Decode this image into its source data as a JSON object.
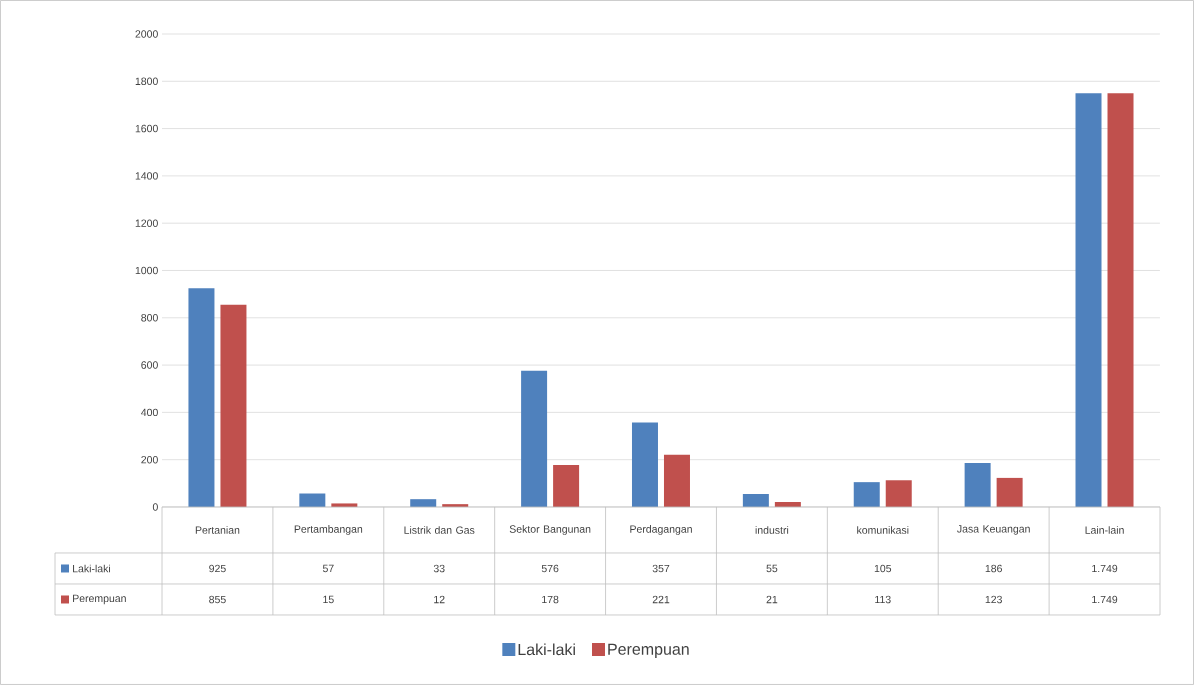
{
  "chart_data": {
    "type": "bar",
    "categories": [
      "Pertanian",
      "Pertambangan",
      "Listrik dan Gas",
      "Sektor Bangunan",
      "Perdagangan",
      "industri",
      "komunikasi",
      "Jasa Keuangan",
      "Lain-lain"
    ],
    "series": [
      {
        "name": "Laki-laki",
        "color": "#4f81bd",
        "values": [
          925,
          57,
          33,
          576,
          357,
          55,
          105,
          186,
          1749
        ],
        "value_labels": [
          "925",
          "57",
          "33",
          "576",
          "357",
          "55",
          "105",
          "186",
          "1.749"
        ]
      },
      {
        "name": "Perempuan",
        "color": "#c0504d",
        "values": [
          855,
          15,
          12,
          178,
          221,
          21,
          113,
          123,
          1749
        ],
        "value_labels": [
          "855",
          "15",
          "12",
          "178",
          "221",
          "21",
          "113",
          "123",
          "1.749"
        ]
      }
    ],
    "ylim": [
      0,
      2000
    ],
    "yticks": [
      0,
      200,
      400,
      600,
      800,
      1000,
      1200,
      1400,
      1600,
      1800,
      2000
    ],
    "grid": "y",
    "legend": "bottom"
  }
}
